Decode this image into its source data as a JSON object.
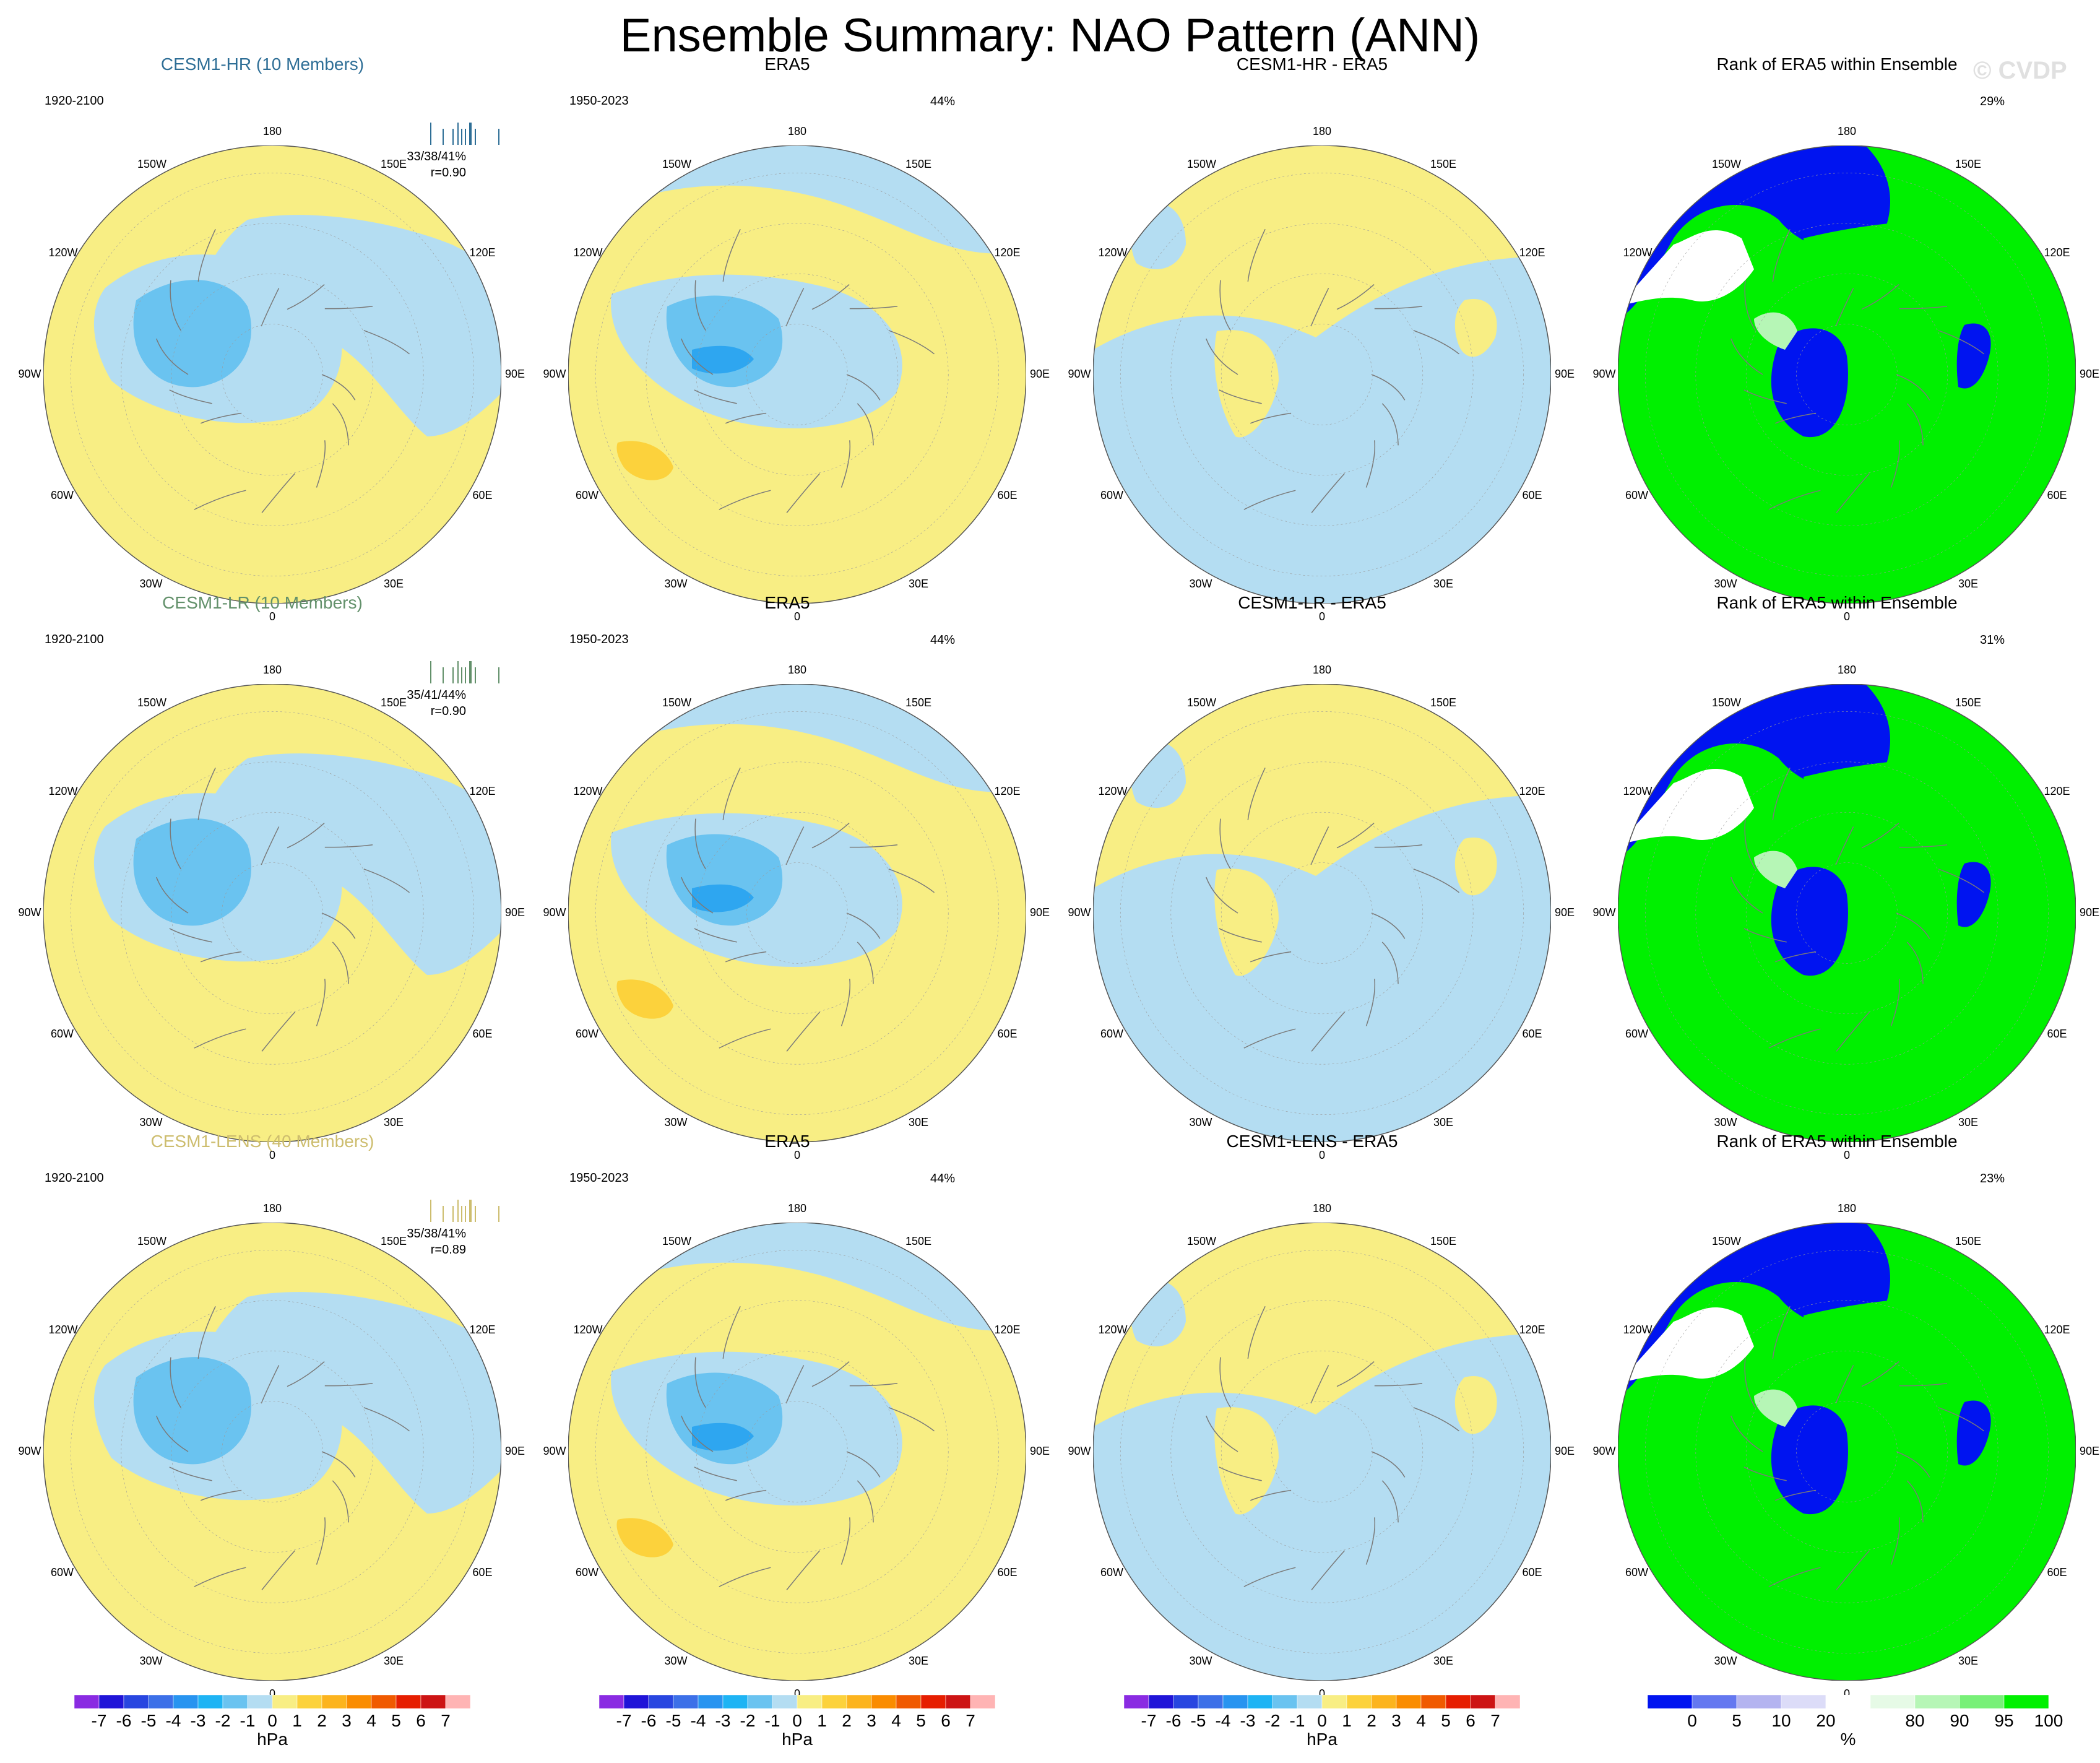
{
  "title": "Ensemble Summary: NAO Pattern (ANN)",
  "watermark": "© CVDP",
  "lon_labels": {
    "n": "180",
    "nw": "150W",
    "ne": "150E",
    "wnw": "120W",
    "ene": "120E",
    "w": "90W",
    "e": "90E",
    "wsw": "60W",
    "ese": "60E",
    "sw": "30W",
    "se": "30E",
    "s": "0"
  },
  "colors": {
    "yellow": "#f8ee84",
    "ltblue": "#b4ddf2",
    "mdblue": "#6ac3f0",
    "dkblue": "#2ea6f0",
    "orange": "#fcd23c",
    "rank_blue": "#0014f0",
    "rank_green": "#00f000",
    "rank_white": "#ffffff",
    "rank_ltgreen": "#b6f6b6",
    "rank_lav": "#dcdcff"
  },
  "rows": [
    {
      "model": {
        "title": "CESM1-HR (10 Members)",
        "title_color": "#2e6e96",
        "years": "1920-2100",
        "pct": "33/38/41%",
        "r": "r=0.90"
      },
      "obs": {
        "title": "ERA5",
        "years": "1950-2023",
        "pct": "44%"
      },
      "diff": {
        "title": "CESM1-HR - ERA5"
      },
      "rank": {
        "title": "Rank of ERA5 within Ensemble",
        "pct": "29%"
      }
    },
    {
      "model": {
        "title": "CESM1-LR (10 Members)",
        "title_color": "#62906a",
        "years": "1920-2100",
        "pct": "35/41/44%",
        "r": "r=0.90"
      },
      "obs": {
        "title": "ERA5",
        "years": "1950-2023",
        "pct": "44%"
      },
      "diff": {
        "title": "CESM1-LR - ERA5"
      },
      "rank": {
        "title": "Rank of ERA5 within Ensemble",
        "pct": "31%"
      }
    },
    {
      "model": {
        "title": "CESM1-LENS (40 Members)",
        "title_color": "#cdbd6e",
        "years": "1920-2100",
        "pct": "35/38/41%",
        "r": "r=0.89"
      },
      "obs": {
        "title": "ERA5",
        "years": "1950-2023",
        "pct": "44%"
      },
      "diff": {
        "title": "CESM1-LENS - ERA5"
      },
      "rank": {
        "title": "Rank of ERA5 within Ensemble",
        "pct": "23%"
      }
    }
  ],
  "colorbar_hpa": {
    "labels": [
      "-7",
      "-6",
      "-5",
      "-4",
      "-3",
      "-2",
      "-1",
      "0",
      "1",
      "2",
      "3",
      "4",
      "5",
      "6",
      "7"
    ],
    "unit": "hPa",
    "colors": [
      "#8a2be2",
      "#2014d8",
      "#2846e0",
      "#3c70e8",
      "#2894f0",
      "#1eb4f4",
      "#6ac3f0",
      "#b4ddf2",
      "#f8ee84",
      "#fcd23c",
      "#fcb41e",
      "#fa8c00",
      "#f05a00",
      "#e61e00",
      "#cd1414",
      "#ffb4b4"
    ]
  },
  "colorbar_pct": {
    "labels": [
      "0",
      "5",
      "10",
      "20",
      "80",
      "90",
      "95",
      "100"
    ],
    "unit": "%",
    "colors": [
      "#0014f0",
      "#6478f0",
      "#b4b4f0",
      "#dcdcf8",
      "#ffffff",
      "#e6fae6",
      "#b6f6b6",
      "#78f078",
      "#00f000"
    ]
  }
}
